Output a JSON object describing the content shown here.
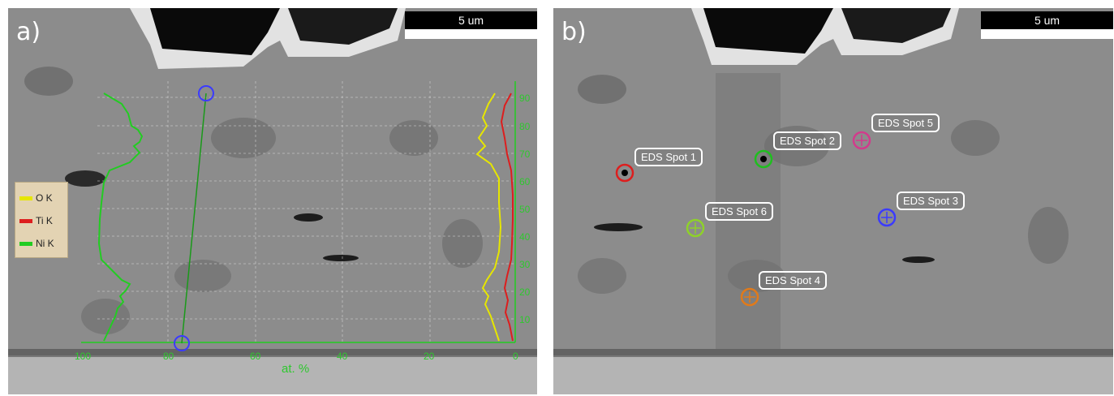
{
  "panel_a": {
    "label": "a)",
    "scale_label": "5 um",
    "legend": [
      {
        "text": "O  K",
        "color": "#e6e600"
      },
      {
        "text": "Ti K",
        "color": "#dd1e1e"
      },
      {
        "text": "Ni K",
        "color": "#22cc22"
      }
    ],
    "x_ticks": [
      "100",
      "80",
      "60",
      "40",
      "20",
      "0"
    ],
    "y_ticks": [
      "90",
      "80",
      "70",
      "60",
      "50",
      "40",
      "30",
      "20",
      "10"
    ],
    "x_unit": "at. %",
    "line_colors": {
      "ni": "#22cc22",
      "o": "#e6e600",
      "ti": "#dd1e1e",
      "scan": "#1a9a1a",
      "marker": "#3b3bff"
    }
  },
  "panel_b": {
    "label": "b)",
    "scale_label": "5 um",
    "spots": [
      {
        "label": "EDS Spot 1",
        "color": "#dd1e1e"
      },
      {
        "label": "EDS Spot 2",
        "color": "#1fbf1f"
      },
      {
        "label": "EDS Spot 3",
        "color": "#3b3bff"
      },
      {
        "label": "EDS Spot 4",
        "color": "#e07a1a"
      },
      {
        "label": "EDS Spot 5",
        "color": "#d23b8c"
      },
      {
        "label": "EDS Spot 6",
        "color": "#8ed12a"
      }
    ]
  }
}
